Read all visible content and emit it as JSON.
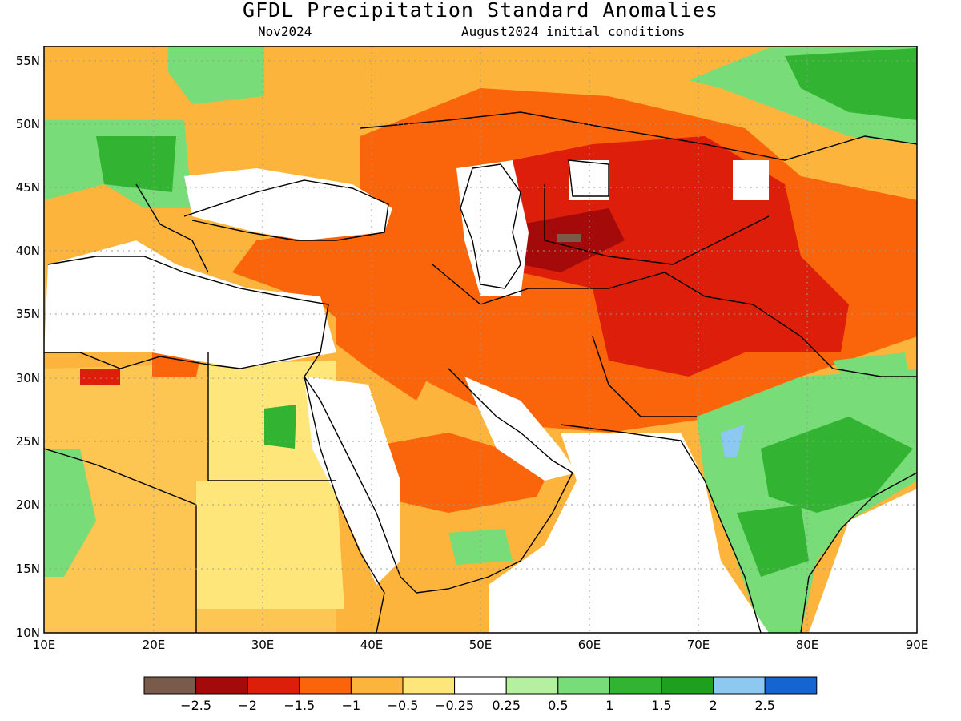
{
  "title": "GFDL Precipitation Standard Anomalies",
  "subtitle_left": "Nov2024",
  "subtitle_right": "August2024 initial conditions",
  "axes": {
    "lon_labels": [
      "10E",
      "20E",
      "30E",
      "40E",
      "50E",
      "60E",
      "70E",
      "80E",
      "90E"
    ],
    "lat_labels": [
      "55N",
      "50N",
      "45N",
      "40N",
      "35N",
      "30N",
      "25N",
      "20N",
      "15N",
      "10N"
    ]
  },
  "colorbar": {
    "colors": [
      "#7a5a4a",
      "#a50a0a",
      "#dc1e0a",
      "#fa640a",
      "#fcb43c",
      "#fee67a",
      "#ffffff",
      "#b4f0a0",
      "#78dc78",
      "#32b432",
      "#1ea01e",
      "#8cc8f0",
      "#1464d2"
    ],
    "labels": [
      "−2.5",
      "−2",
      "−1.5",
      "−1",
      "−0.5",
      "−0.25",
      "0.25",
      "0.5",
      "1",
      "1.5",
      "2",
      "2.5"
    ]
  },
  "legend_colors": {
    "very_dry": "#a50a0a",
    "dry": "#dc1e0a",
    "moderate_dry": "#fa640a",
    "light_dry": "#fcb43c",
    "slight_dry": "#fee67a",
    "neutral": "#ffffff",
    "light_wet": "#b4f0a0",
    "wet": "#78dc78",
    "very_wet": "#32b432",
    "extreme_wet": "#8cc8f0"
  }
}
